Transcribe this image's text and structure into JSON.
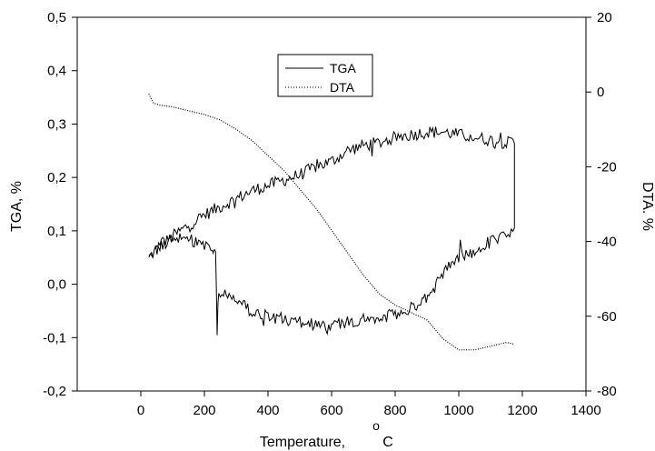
{
  "chart_data": {
    "type": "line",
    "title": "",
    "xlabel": "Temperature,",
    "xlabel_unit": "C",
    "xlabel_superscript": "o",
    "ylabel_left": "TGA, %",
    "ylabel_right": "DTA. %",
    "xlim": [
      -200,
      1400
    ],
    "ylim_left": [
      -0.2,
      0.5
    ],
    "ylim_right": [
      -80,
      20
    ],
    "x_ticks": [
      {
        "value": 0,
        "label": "0"
      },
      {
        "value": 200,
        "label": "200"
      },
      {
        "value": 400,
        "label": "400"
      },
      {
        "value": 600,
        "label": "600"
      },
      {
        "value": 800,
        "label": "800"
      },
      {
        "value": 1000,
        "label": "1000"
      },
      {
        "value": 1200,
        "label": "1200"
      },
      {
        "value": 1400,
        "label": "1400"
      }
    ],
    "y_left_ticks": [
      {
        "value": -0.2,
        "label": "-0,2"
      },
      {
        "value": -0.1,
        "label": "-0,1"
      },
      {
        "value": 0.0,
        "label": "0,0"
      },
      {
        "value": 0.1,
        "label": "0,1"
      },
      {
        "value": 0.2,
        "label": "0,2"
      },
      {
        "value": 0.3,
        "label": "0,3"
      },
      {
        "value": 0.4,
        "label": "0,4"
      },
      {
        "value": 0.5,
        "label": "0,5"
      }
    ],
    "y_right_ticks": [
      {
        "value": -80,
        "label": "-80"
      },
      {
        "value": -60,
        "label": "-60"
      },
      {
        "value": -40,
        "label": "-40"
      },
      {
        "value": -20,
        "label": "-20"
      },
      {
        "value": 0,
        "label": "0"
      },
      {
        "value": 20,
        "label": "20"
      }
    ],
    "grid": false,
    "legend_position": "top-center",
    "series": [
      {
        "name": "TGA",
        "axis": "left",
        "style": "solid",
        "color": "#000000",
        "noise": 0.012,
        "x": [
          25,
          60,
          100,
          150,
          200,
          250,
          300,
          350,
          400,
          450,
          500,
          550,
          600,
          650,
          700,
          750,
          800,
          850,
          900,
          950,
          1000,
          1050,
          1100,
          1150,
          1175,
          1175,
          1160,
          1140,
          1100,
          1050,
          1000,
          950,
          920,
          880,
          850,
          800,
          750,
          700,
          650,
          600,
          550,
          500,
          450,
          400,
          350,
          300,
          260,
          245,
          240,
          235,
          230,
          225,
          200,
          150,
          100,
          60,
          25
        ],
        "y": [
          0.05,
          0.07,
          0.09,
          0.11,
          0.13,
          0.145,
          0.16,
          0.175,
          0.185,
          0.195,
          0.205,
          0.22,
          0.23,
          0.25,
          0.26,
          0.265,
          0.275,
          0.28,
          0.285,
          0.285,
          0.28,
          0.275,
          0.27,
          0.265,
          0.265,
          0.11,
          0.1,
          0.09,
          0.08,
          0.06,
          0.05,
          0.02,
          -0.01,
          -0.035,
          -0.045,
          -0.055,
          -0.06,
          -0.065,
          -0.07,
          -0.075,
          -0.075,
          -0.07,
          -0.065,
          -0.06,
          -0.05,
          -0.035,
          -0.02,
          -0.01,
          -0.085,
          0.06,
          0.065,
          0.07,
          0.075,
          0.085,
          0.085,
          0.07,
          0.05
        ]
      },
      {
        "name": "DTA",
        "axis": "right",
        "style": "dotted",
        "color": "#000000",
        "x": [
          25,
          40,
          60,
          100,
          150,
          200,
          250,
          300,
          350,
          400,
          450,
          500,
          550,
          600,
          650,
          700,
          750,
          800,
          850,
          900,
          950,
          1000,
          1050,
          1100,
          1150,
          1175
        ],
        "y": [
          -0.5,
          -3,
          -3.5,
          -4,
          -5,
          -6,
          -7.5,
          -10,
          -13,
          -17,
          -21,
          -26,
          -31,
          -37,
          -43,
          -49,
          -54,
          -57,
          -59,
          -61,
          -66,
          -69,
          -69,
          -68,
          -67,
          -67.5
        ]
      }
    ]
  }
}
